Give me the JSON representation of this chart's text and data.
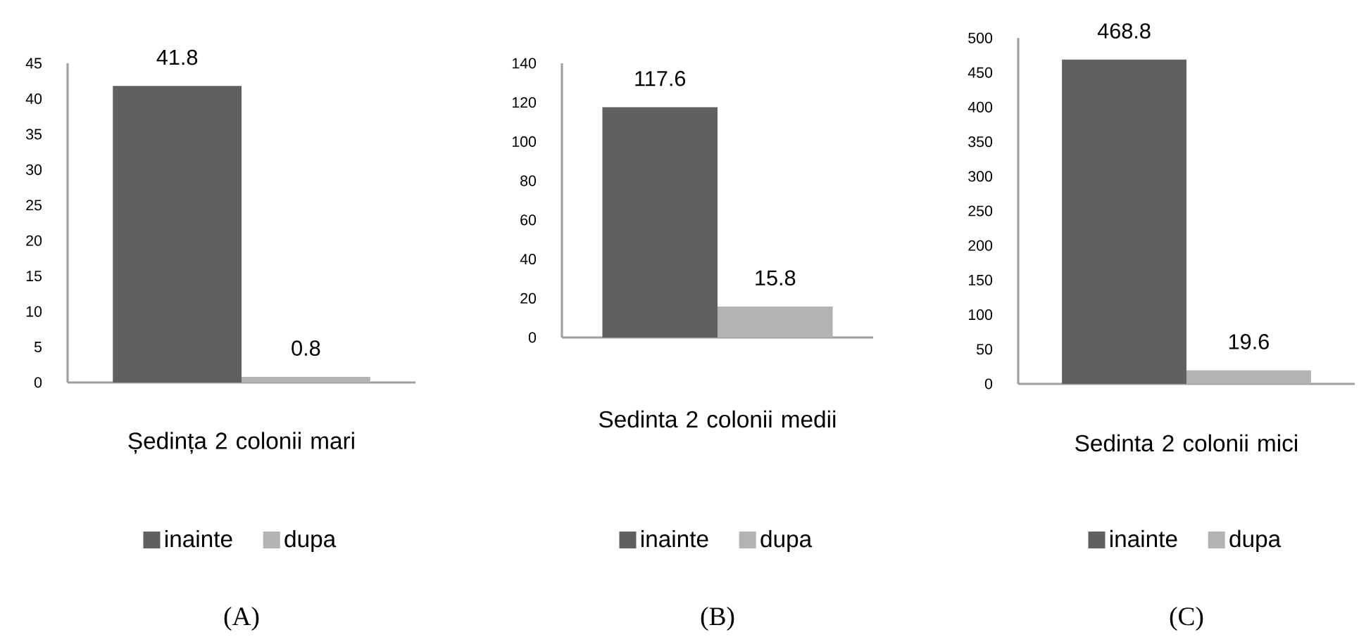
{
  "chart_data": [
    {
      "type": "bar",
      "categories": [
        "Ședința 2 colonii mari"
      ],
      "series": [
        {
          "name": "inainte",
          "color": "#606060",
          "values": [
            41.8
          ]
        },
        {
          "name": "dupa",
          "color": "#b3b3b3",
          "values": [
            0.8
          ]
        }
      ],
      "ylim": [
        0,
        45
      ],
      "yticks": [
        0,
        5,
        10,
        15,
        20,
        25,
        30,
        35,
        40,
        45
      ],
      "data_labels": true,
      "legend": "bottom",
      "grid": false,
      "annotations": [
        "(A)"
      ]
    },
    {
      "type": "bar",
      "categories": [
        "Sedinta 2 colonii medii"
      ],
      "series": [
        {
          "name": "inainte",
          "color": "#606060",
          "values": [
            117.6
          ]
        },
        {
          "name": "dupa",
          "color": "#b3b3b3",
          "values": [
            15.8
          ]
        }
      ],
      "ylim": [
        0,
        140
      ],
      "yticks": [
        0,
        20,
        40,
        60,
        80,
        100,
        120,
        140
      ],
      "data_labels": true,
      "legend": "bottom",
      "grid": false,
      "annotations": [
        "(B)"
      ]
    },
    {
      "type": "bar",
      "categories": [
        "Sedinta 2 colonii mici"
      ],
      "series": [
        {
          "name": "inainte",
          "color": "#606060",
          "values": [
            468.8
          ]
        },
        {
          "name": "dupa",
          "color": "#b3b3b3",
          "values": [
            19.6
          ]
        }
      ],
      "ylim": [
        0,
        500
      ],
      "yticks": [
        0,
        50,
        100,
        150,
        200,
        250,
        300,
        350,
        400,
        450,
        500
      ],
      "data_labels": true,
      "legend": "bottom",
      "grid": false,
      "annotations": [
        "(C)"
      ]
    }
  ]
}
